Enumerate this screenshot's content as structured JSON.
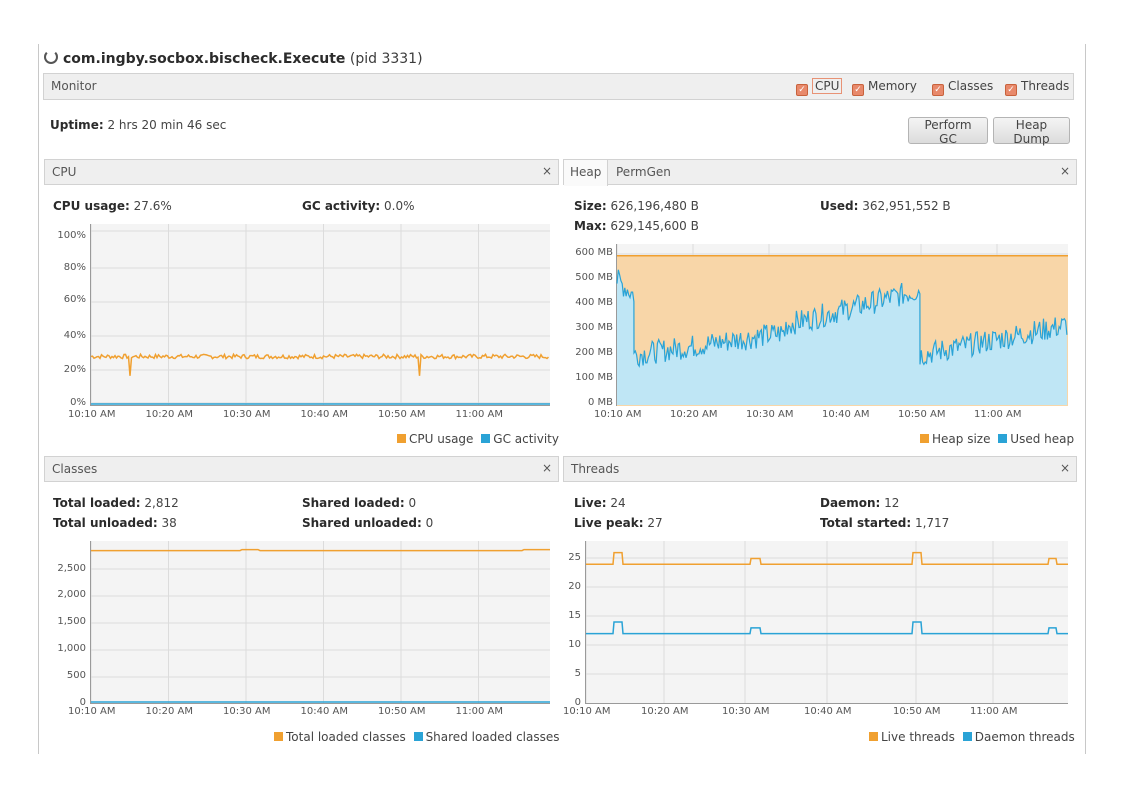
{
  "header": {
    "spinner_icon": "loading-spinner-icon",
    "app_class": "com.ingby.socbox.bischeck.Execute",
    "pid": "(pid 3331)"
  },
  "monitor": {
    "label": "Monitor",
    "toggles": [
      {
        "label": "CPU",
        "checked": true
      },
      {
        "label": "Memory",
        "checked": true
      },
      {
        "label": "Classes",
        "checked": true
      },
      {
        "label": "Threads",
        "checked": true
      }
    ]
  },
  "uptime": {
    "label": "Uptime:",
    "value": "2 hrs 20 min 46 sec"
  },
  "buttons": {
    "perform_gc": "Perform GC",
    "heap_dump": "Heap Dump"
  },
  "colors": {
    "orange": "#f0a030",
    "blue": "#2aa3d6",
    "orange_fill": "#f8d6a8",
    "blue_fill": "#bfe6f5"
  },
  "x_ticks": [
    "10:10 AM",
    "10:20 AM",
    "10:30 AM",
    "10:40 AM",
    "10:50 AM",
    "11:00 AM"
  ],
  "cpu": {
    "title": "CPU",
    "close": "×",
    "usage_label": "CPU usage:",
    "usage_value": "27.6%",
    "gc_label": "GC activity:",
    "gc_value": "0.0%",
    "legend": [
      "CPU usage",
      "GC activity"
    ]
  },
  "heap": {
    "tabs": [
      "Heap",
      "PermGen"
    ],
    "close": "×",
    "size_label": "Size:",
    "size_value": "626,196,480 B",
    "used_label": "Used:",
    "used_value": "362,951,552 B",
    "max_label": "Max:",
    "max_value": "629,145,600 B",
    "legend": [
      "Heap size",
      "Used heap"
    ]
  },
  "classes": {
    "title": "Classes",
    "close": "×",
    "total_loaded_label": "Total loaded:",
    "total_loaded_value": "2,812",
    "total_unloaded_label": "Total unloaded:",
    "total_unloaded_value": "38",
    "shared_loaded_label": "Shared loaded:",
    "shared_loaded_value": "0",
    "shared_unloaded_label": "Shared unloaded:",
    "shared_unloaded_value": "0",
    "legend": [
      "Total loaded classes",
      "Shared loaded classes"
    ]
  },
  "threads": {
    "title": "Threads",
    "close": "×",
    "live_label": "Live:",
    "live_value": "24",
    "daemon_label": "Daemon:",
    "daemon_value": "12",
    "peak_label": "Live peak:",
    "peak_value": "27",
    "started_label": "Total started:",
    "started_value": "1,717",
    "legend": [
      "Live threads",
      "Daemon threads"
    ]
  },
  "chart_data": [
    {
      "type": "line",
      "title": "CPU",
      "x_range": [
        "10:10 AM",
        "11:10 AM"
      ],
      "x_tick_labels": [
        "10:10 AM",
        "10:20 AM",
        "10:30 AM",
        "10:40 AM",
        "10:50 AM",
        "11:00 AM"
      ],
      "y_tick_labels": [
        "0%",
        "20%",
        "40%",
        "60%",
        "80%",
        "100%"
      ],
      "ylim": [
        0,
        100
      ],
      "series": [
        {
          "name": "CPU usage",
          "approx_level": 27,
          "approx_peak": 34,
          "dips": [
            {
              "x": "10:15 AM",
              "y": 16
            },
            {
              "x": "10:53 AM",
              "y": 16
            }
          ]
        },
        {
          "name": "GC activity",
          "approx_level": 0
        }
      ]
    },
    {
      "type": "area",
      "title": "Heap",
      "x_tick_labels": [
        "10:10 AM",
        "10:20 AM",
        "10:30 AM",
        "10:40 AM",
        "10:50 AM",
        "11:00 AM"
      ],
      "y_tick_labels": [
        "0 MB",
        "100 MB",
        "200 MB",
        "300 MB",
        "400 MB",
        "500 MB",
        "600 MB"
      ],
      "ylim": [
        0,
        600
      ],
      "series": [
        {
          "name": "Heap size",
          "approx_level_mb": 597
        },
        {
          "name": "Used heap",
          "segments": [
            {
              "from": "10:10 AM",
              "to": "10:11 AM",
              "start_mb": 500,
              "end_mb": 440
            },
            {
              "from": "10:11 AM",
              "to": "10:30 AM",
              "start_mb": 200,
              "end_mb": 290
            },
            {
              "from": "10:30 AM",
              "to": "10:50 AM",
              "start_mb": 320,
              "end_mb": 460
            },
            {
              "from": "10:50 AM",
              "to": "11:10 AM",
              "start_mb": 200,
              "end_mb": 320
            }
          ]
        }
      ]
    },
    {
      "type": "line",
      "title": "Classes",
      "x_tick_labels": [
        "10:10 AM",
        "10:20 AM",
        "10:30 AM",
        "10:40 AM",
        "10:50 AM",
        "11:00 AM"
      ],
      "y_tick_labels": [
        "0",
        "500",
        "1,000",
        "1,500",
        "2,000",
        "2,500"
      ],
      "ylim": [
        0,
        2900
      ],
      "series": [
        {
          "name": "Total loaded classes",
          "approx_level": 2780
        },
        {
          "name": "Shared loaded classes",
          "approx_level": 0
        }
      ]
    },
    {
      "type": "line",
      "title": "Threads",
      "x_tick_labels": [
        "10:10 AM",
        "10:20 AM",
        "10:30 AM",
        "10:40 AM",
        "10:50 AM",
        "11:00 AM"
      ],
      "y_tick_labels": [
        "0",
        "5",
        "10",
        "15",
        "20",
        "25"
      ],
      "ylim": [
        0,
        27
      ],
      "series": [
        {
          "name": "Live threads",
          "base": 24,
          "peaks": [
            26,
            25,
            26,
            25
          ]
        },
        {
          "name": "Daemon threads",
          "base": 12,
          "peaks": [
            14,
            13,
            14,
            13
          ]
        }
      ]
    }
  ]
}
